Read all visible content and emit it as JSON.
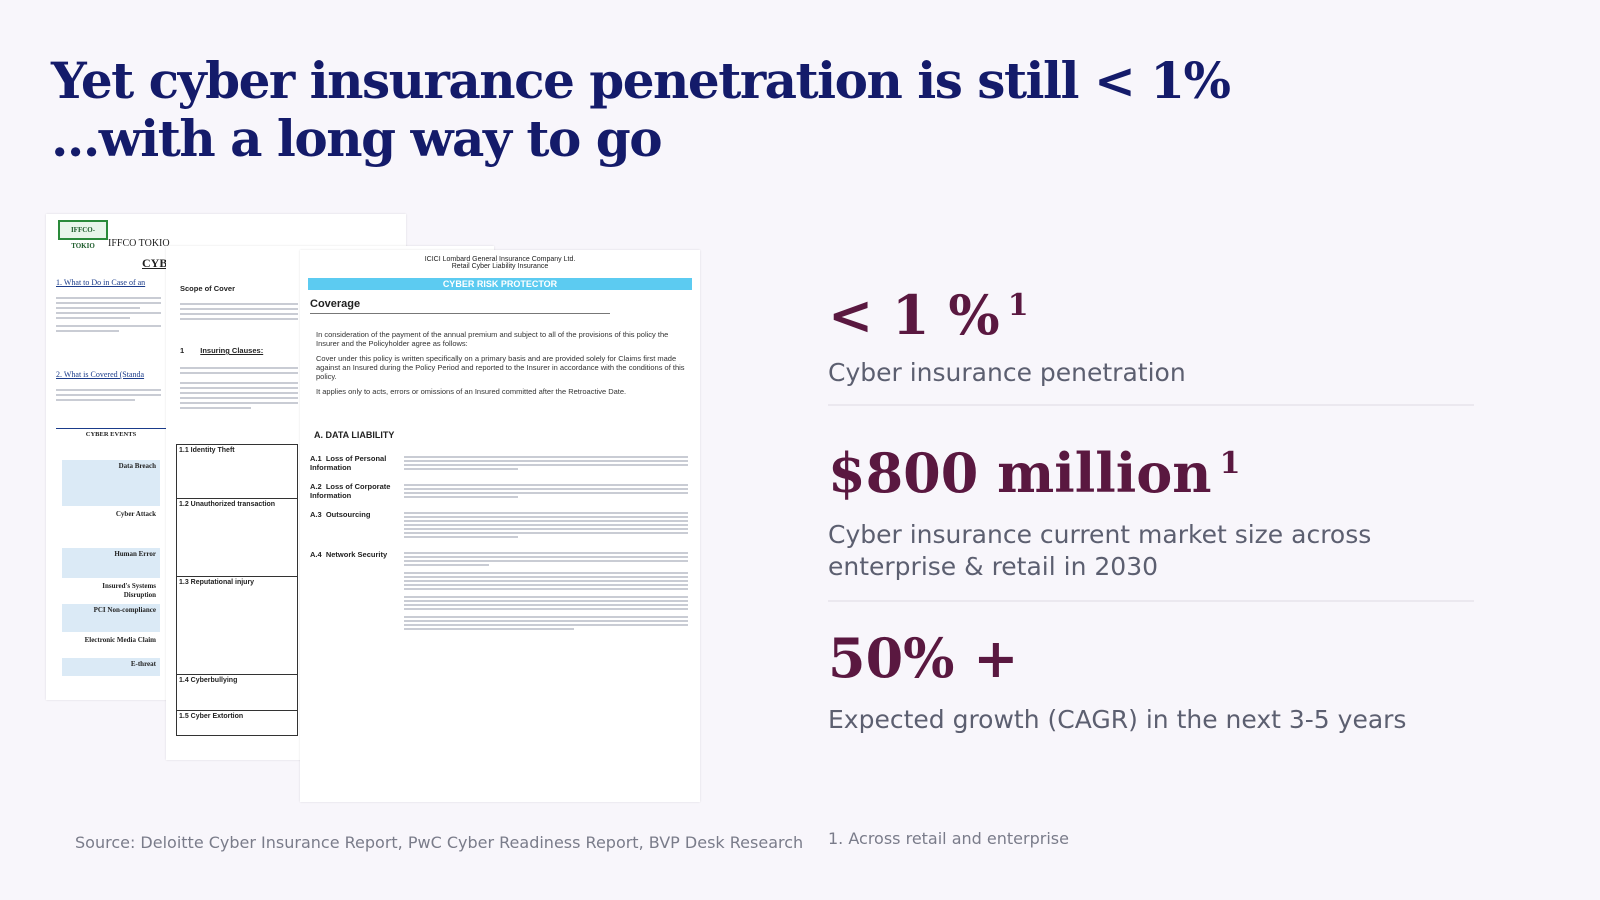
{
  "title": {
    "line1": "Yet cyber insurance penetration is still < 1%",
    "line2": "...with a long way to go"
  },
  "stats": [
    {
      "value": "< 1 %",
      "sup": "1",
      "label": "Cyber insurance penetration"
    },
    {
      "value": "$800 million",
      "sup": "1",
      "label": "Cyber insurance current market size across enterprise & retail in 2030"
    },
    {
      "value": "50% +",
      "sup": "",
      "label": "Expected growth (CAGR) in the next 3-5 years"
    }
  ],
  "source": "Source: Deloitte Cyber Insurance Report, PwC Cyber Readiness Report, BVP Desk Research",
  "footnote": "1. Across retail and enterprise",
  "documents": {
    "doc1": {
      "logo": "IFFCO-TOKIO",
      "header": "IFFCO TOKIO",
      "heading": "CYB",
      "item1": "1.    What to Do in Case of an",
      "item2": "2.    What is Covered (Standa",
      "table_header": "CYBER EVENTS",
      "events": [
        "Data Breach",
        "Cyber Attack",
        "Human Error",
        "Insured's Systems Disruption",
        "PCI Non-compliance",
        "Electronic Media Claim",
        "E-threat"
      ]
    },
    "doc2": {
      "scope": "Scope of Cover",
      "clauses_num": "1",
      "clauses": "Insuring Clauses:",
      "rows": [
        "1.1 Identity Theft",
        "1.2 Unauthorized transaction",
        "1.3 Reputational injury",
        "1.4 Cyberbullying",
        "1.5 Cyber Extortion"
      ]
    },
    "doc3": {
      "company": "ICICI Lombard General Insurance Company Ltd.",
      "product": "Retail Cyber Liability Insurance",
      "banner": "CYBER RISK PROTECTOR",
      "coverage": "Coverage",
      "intro1": "In consideration of the payment of the annual premium and subject to all of the provisions of this policy the Insurer and the Policyholder agree as follows:",
      "intro2": "Cover under this policy is written specifically on a primary basis and are provided solely for Claims first made against an Insured during the Policy Period and reported to the Insurer in accordance with the conditions of this policy.",
      "intro3": "It applies only to acts, errors or omissions of an Insured committed after the Retroactive Date.",
      "section": "A. DATA LIABILITY",
      "clauses": [
        {
          "code": "A.1",
          "name": "Loss of Personal Information"
        },
        {
          "code": "A.2",
          "name": "Loss of Corporate Information"
        },
        {
          "code": "A.3",
          "name": "Outsourcing"
        },
        {
          "code": "A.4",
          "name": "Network Security"
        }
      ]
    }
  }
}
